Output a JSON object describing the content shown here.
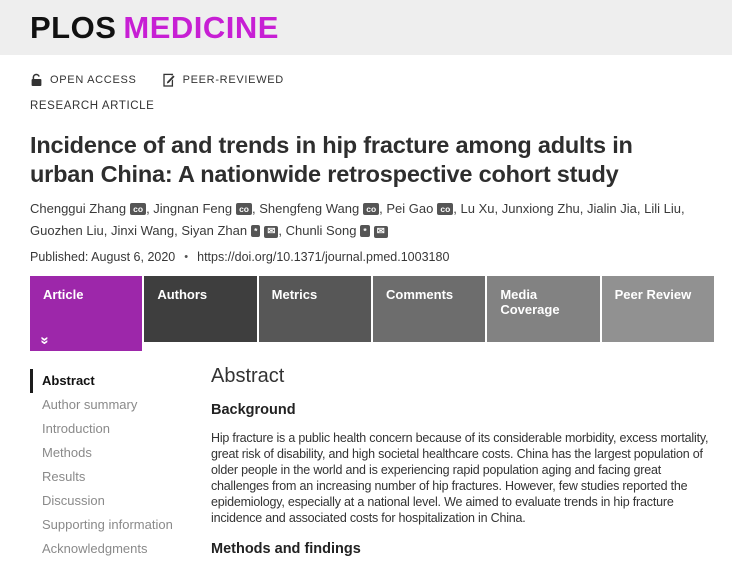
{
  "logo": {
    "plos": "PLOS",
    "journal": "MEDICINE",
    "journal_color": "#C71FD4"
  },
  "badges": {
    "open_access": "OPEN ACCESS",
    "peer_reviewed": "PEER-REVIEWED"
  },
  "article_type": "RESEARCH ARTICLE",
  "title": "Incidence of and trends in hip fracture among adults in urban China: A nationwide retrospective cohort study",
  "authors": [
    {
      "name": "Chenggui Zhang",
      "badges": [
        "co"
      ]
    },
    {
      "name": "Jingnan Feng",
      "badges": [
        "co"
      ]
    },
    {
      "name": "Shengfeng Wang",
      "badges": [
        "co"
      ]
    },
    {
      "name": "Pei Gao",
      "badges": [
        "co"
      ]
    },
    {
      "name": "Lu Xu",
      "badges": []
    },
    {
      "name": "Junxiong Zhu",
      "badges": []
    },
    {
      "name": "Jialin Jia",
      "badges": []
    },
    {
      "name": "Lili Liu",
      "badges": []
    },
    {
      "name": "Guozhen Liu",
      "badges": []
    },
    {
      "name": "Jinxi Wang",
      "badges": []
    },
    {
      "name": "Siyan Zhan",
      "badges": [
        "asterisk",
        "envelope"
      ]
    },
    {
      "name": "Chunli Song",
      "badges": [
        "asterisk",
        "envelope"
      ]
    }
  ],
  "published": {
    "label": "Published: August 6, 2020",
    "separator": "•",
    "doi": "https://doi.org/10.1371/journal.pmed.1003180"
  },
  "tabs": [
    {
      "label": "Article",
      "active": true,
      "bg": "#9D27AA"
    },
    {
      "label": "Authors",
      "active": false,
      "bg": "#3E3E3E"
    },
    {
      "label": "Metrics",
      "active": false,
      "bg": "#575757"
    },
    {
      "label": "Comments",
      "active": false,
      "bg": "#6D6D6D"
    },
    {
      "label": "Media Coverage",
      "active": false,
      "bg": "#828282"
    },
    {
      "label": "Peer Review",
      "active": false,
      "bg": "#919191"
    }
  ],
  "sidebar": {
    "items": [
      {
        "label": "Abstract",
        "active": true
      },
      {
        "label": "Author summary",
        "active": false
      },
      {
        "label": "Introduction",
        "active": false
      },
      {
        "label": "Methods",
        "active": false
      },
      {
        "label": "Results",
        "active": false
      },
      {
        "label": "Discussion",
        "active": false
      },
      {
        "label": "Supporting information",
        "active": false
      },
      {
        "label": "Acknowledgments",
        "active": false
      }
    ]
  },
  "content": {
    "section_title": "Abstract",
    "sections": [
      {
        "heading": "Background",
        "text": "Hip fracture is a public health concern because of its considerable morbidity, excess mortality, great risk of disability, and high societal healthcare costs. China has the largest population of older people in the world and is experiencing rapid population aging and facing great challenges from an increasing number of hip fractures. However, few studies reported the epidemiology, especially at a national level. We aimed to evaluate trends in hip fracture incidence and associated costs for hospitalization in China."
      },
      {
        "heading": "Methods and findings",
        "text": ""
      }
    ]
  }
}
